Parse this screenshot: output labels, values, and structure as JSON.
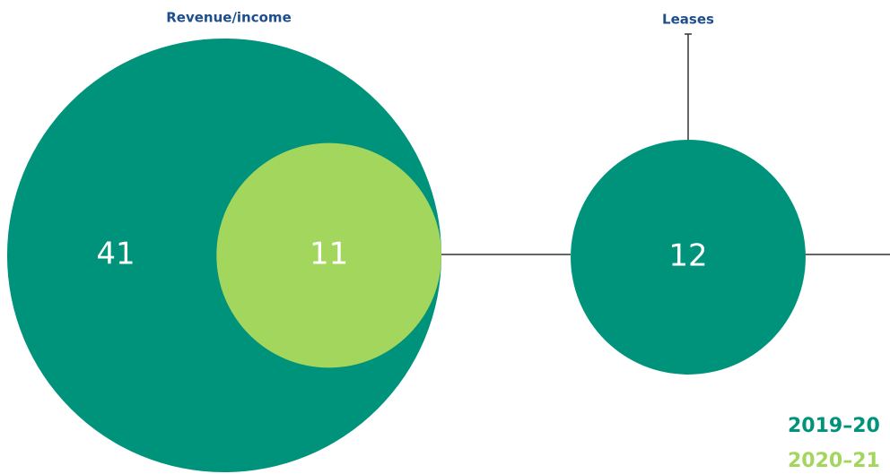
{
  "chart_data": {
    "type": "bubble",
    "categories": [
      "Revenue/income",
      "Leases"
    ],
    "series": [
      {
        "name": "2019–20",
        "color": "#00937c",
        "values": [
          41,
          12
        ]
      },
      {
        "name": "2020–21",
        "color": "#a3d65c",
        "values": [
          11,
          null
        ]
      }
    ]
  }
}
